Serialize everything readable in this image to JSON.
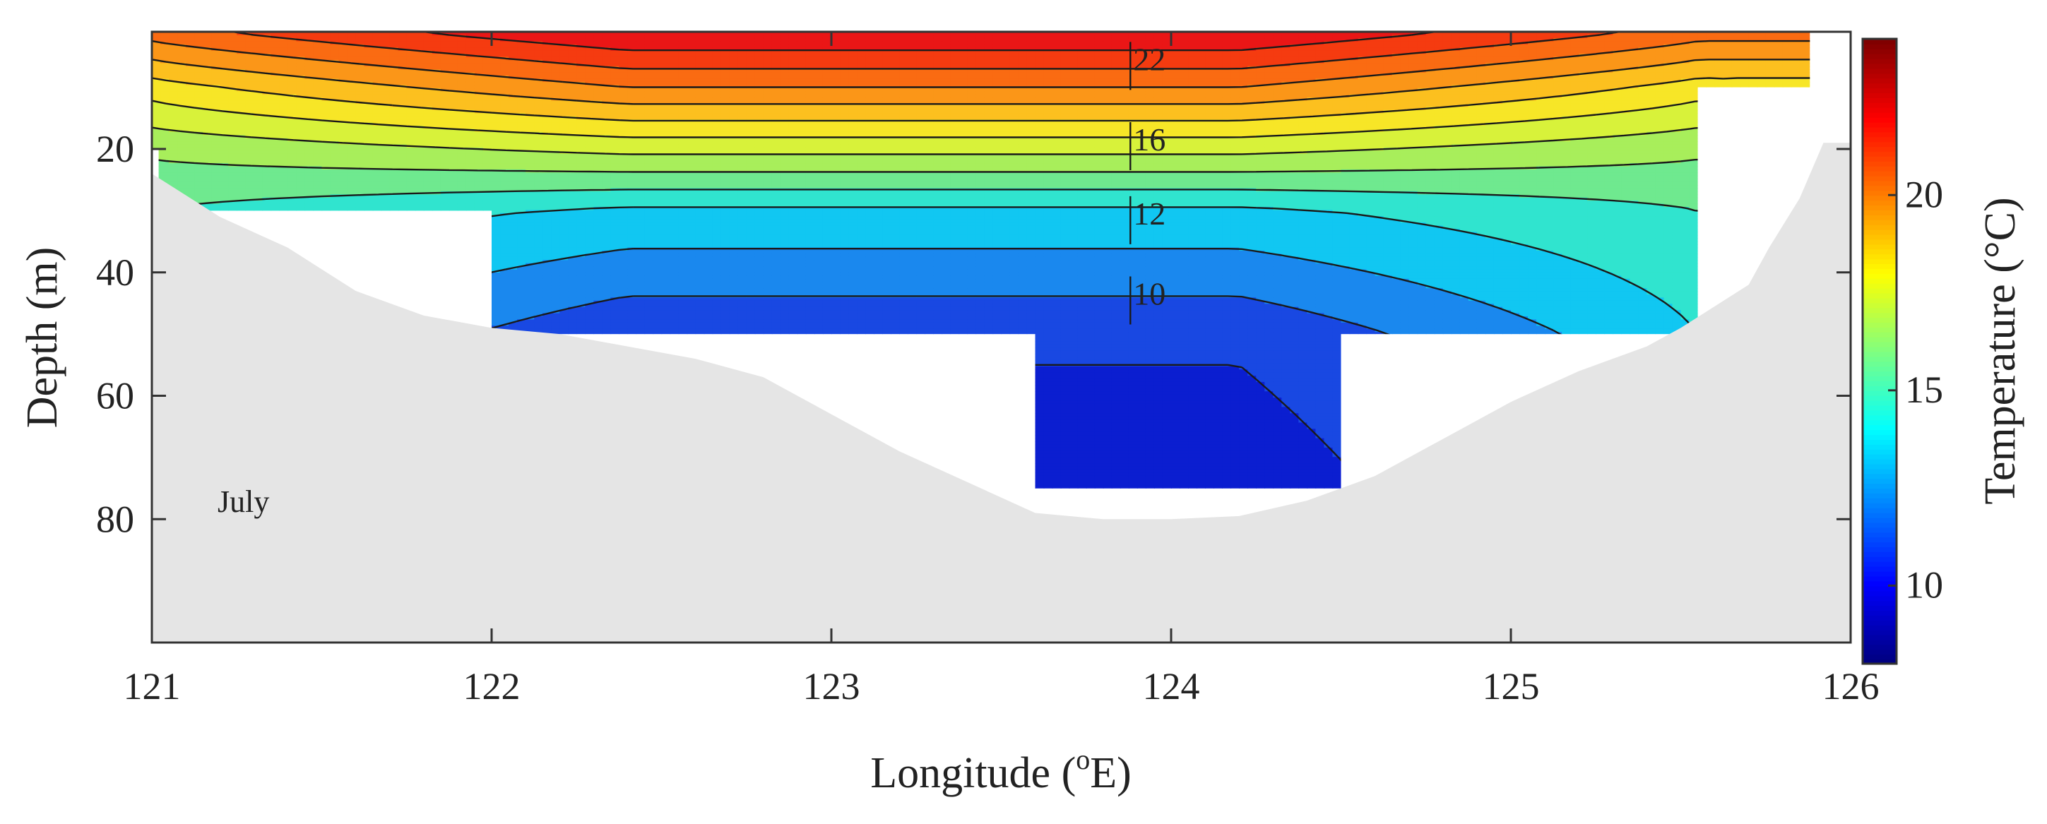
{
  "chart_data": {
    "type": "heatmap",
    "subtype": "filled-contour-section",
    "annotation": "July",
    "xlabel_main": "Longitude (",
    "xlabel_sup": "o",
    "xlabel_end": "E)",
    "ylabel": "Depth (m)",
    "colorbar_label": "Temperature (°C)",
    "xlim": [
      121,
      126
    ],
    "ylim": [
      100,
      0
    ],
    "ylim_display": [
      100,
      1
    ],
    "xticks": [
      121,
      122,
      123,
      124,
      125,
      126
    ],
    "yticks": [
      20,
      40,
      60,
      80
    ],
    "colorbar_range": [
      8,
      24
    ],
    "colorbar_ticks": [
      10,
      15,
      20
    ],
    "colormap": "jet",
    "contour_labels": [
      {
        "text": "22",
        "lon": 123.88,
        "depth": 7
      },
      {
        "text": "16",
        "lon": 123.88,
        "depth": 20
      },
      {
        "text": "12",
        "lon": 123.88,
        "depth": 32
      },
      {
        "text": "10",
        "lon": 123.88,
        "depth": 45
      }
    ],
    "depth_levels": [
      1,
      10,
      20,
      30,
      50,
      75
    ],
    "temperature_bands": [
      {
        "level_min": 22,
        "level_max": 24,
        "color": "#ea1616"
      },
      {
        "level_min": 21,
        "level_max": 22,
        "color": "#f53b10"
      },
      {
        "level_min": 20,
        "level_max": 21,
        "color": "#fa6b12"
      },
      {
        "level_min": 19,
        "level_max": 20,
        "color": "#fb9618"
      },
      {
        "level_min": 18,
        "level_max": 19,
        "color": "#fcc01f"
      },
      {
        "level_min": 17,
        "level_max": 18,
        "color": "#f7e627"
      },
      {
        "level_min": 16,
        "level_max": 17,
        "color": "#d8f23a"
      },
      {
        "level_min": 15,
        "level_max": 16,
        "color": "#a8ee5b"
      },
      {
        "level_min": 14,
        "level_max": 15,
        "color": "#6fe98f"
      },
      {
        "level_min": 13,
        "level_max": 14,
        "color": "#30e4cf"
      },
      {
        "level_min": 12,
        "level_max": 13,
        "color": "#11c7f2"
      },
      {
        "level_min": 11,
        "level_max": 12,
        "color": "#1a88ee"
      },
      {
        "level_min": 10,
        "level_max": 11,
        "color": "#1948e2"
      },
      {
        "level_min": 9,
        "level_max": 10,
        "color": "#0b1ed0"
      }
    ],
    "data_region_depth": [
      {
        "lon_start": 121.0,
        "lon_end": 121.02,
        "max_depth": 20
      },
      {
        "lon_start": 121.02,
        "lon_end": 122.0,
        "max_depth": 30
      },
      {
        "lon_start": 122.0,
        "lon_end": 123.6,
        "max_depth": 50
      },
      {
        "lon_start": 123.6,
        "lon_end": 124.5,
        "max_depth": 75
      },
      {
        "lon_start": 124.5,
        "lon_end": 125.08,
        "max_depth": 50
      },
      {
        "lon_start": 125.08,
        "lon_end": 125.55,
        "max_depth": 50
      },
      {
        "lon_start": 125.55,
        "lon_end": 125.88,
        "max_depth": 10
      }
    ],
    "bathymetry": [
      [
        121.0,
        24
      ],
      [
        121.2,
        31
      ],
      [
        121.4,
        36
      ],
      [
        121.6,
        43
      ],
      [
        121.8,
        47
      ],
      [
        122.0,
        49
      ],
      [
        122.2,
        50
      ],
      [
        122.4,
        52
      ],
      [
        122.6,
        54
      ],
      [
        122.8,
        57
      ],
      [
        123.0,
        63
      ],
      [
        123.2,
        69
      ],
      [
        123.4,
        74
      ],
      [
        123.6,
        79
      ],
      [
        123.8,
        80
      ],
      [
        124.0,
        80
      ],
      [
        124.2,
        79.5
      ],
      [
        124.4,
        77
      ],
      [
        124.6,
        73
      ],
      [
        124.8,
        67
      ],
      [
        125.0,
        61
      ],
      [
        125.2,
        56
      ],
      [
        125.4,
        52
      ],
      [
        125.5,
        49
      ],
      [
        125.7,
        42
      ],
      [
        125.76,
        36
      ],
      [
        125.85,
        28
      ],
      [
        125.92,
        19
      ],
      [
        126.0,
        19
      ]
    ]
  }
}
